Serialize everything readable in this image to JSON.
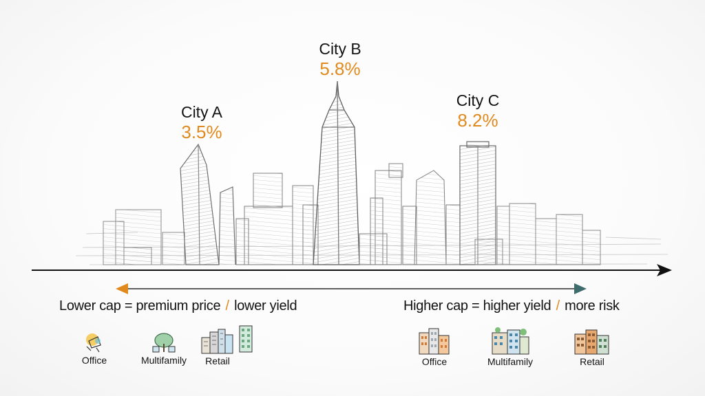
{
  "cities": [
    {
      "name": "City A",
      "rate": "3.5%"
    },
    {
      "name": "City B",
      "rate": "5.8%"
    },
    {
      "name": "City C",
      "rate": "8.2%"
    }
  ],
  "captions": {
    "left_before": "Lower cap = premium price",
    "left_after": "lower yield",
    "right_before": "Higher cap = higher yield",
    "right_after": "more risk",
    "separator": "/"
  },
  "left_icons": [
    {
      "label": "Office",
      "icon": "office-sketch-icon"
    },
    {
      "label": "Multifamily",
      "icon": "tree-house-icon"
    },
    {
      "label": "Retail",
      "icon": "city-buildings-icon"
    },
    {
      "label": "",
      "icon": "tower-building-icon"
    }
  ],
  "right_icons": [
    {
      "label": "Office",
      "icon": "office-building-icon"
    },
    {
      "label": "Multifamily",
      "icon": "apartment-complex-icon"
    },
    {
      "label": "Retail",
      "icon": "retail-building-icon"
    }
  ],
  "colors": {
    "accent": "#e08a1e",
    "teal_arrow": "#3e6b6b",
    "axis": "#111111"
  }
}
